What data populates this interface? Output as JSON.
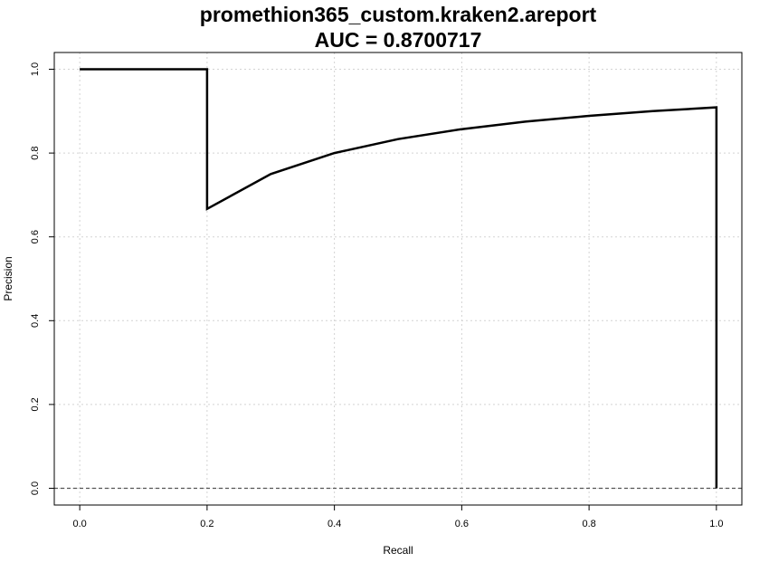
{
  "chart_data": {
    "type": "line",
    "title": "promethion365_custom.kraken2.areport",
    "subtitle": "AUC = 0.8700717",
    "xlabel": "Recall",
    "ylabel": "Precision",
    "xlim": [
      -0.04,
      1.04
    ],
    "ylim": [
      -0.04,
      1.04
    ],
    "x_ticks": [
      "0.0",
      "0.2",
      "0.4",
      "0.6",
      "0.8",
      "1.0"
    ],
    "y_ticks": [
      "0.0",
      "0.2",
      "0.4",
      "0.6",
      "0.8",
      "1.0"
    ],
    "grid": true,
    "baseline": {
      "y": 0,
      "style": "dashed",
      "color": "#555555"
    },
    "series": [
      {
        "color": "#000000",
        "points": [
          [
            0.0,
            1.0
          ],
          [
            0.2,
            1.0
          ],
          [
            0.2,
            0.6667
          ],
          [
            0.3,
            0.75
          ],
          [
            0.4,
            0.8
          ],
          [
            0.5,
            0.8333
          ],
          [
            0.6,
            0.8571
          ],
          [
            0.7,
            0.875
          ],
          [
            0.8,
            0.8889
          ],
          [
            0.9,
            0.9
          ],
          [
            1.0,
            0.9091
          ],
          [
            1.0,
            0.0
          ]
        ]
      }
    ]
  }
}
